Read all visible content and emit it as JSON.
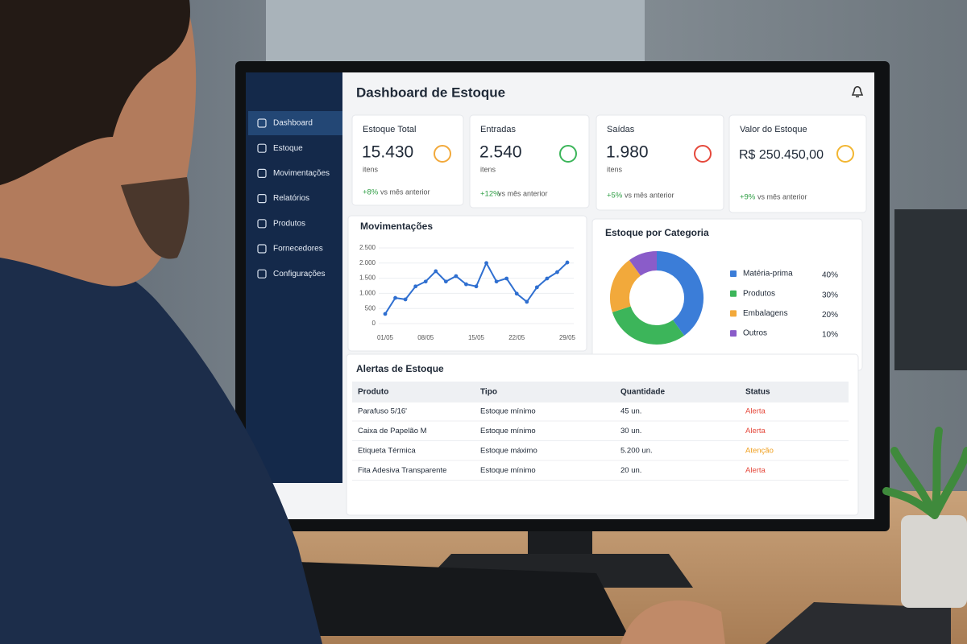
{
  "header": {
    "title": "Dashboard de Estoque"
  },
  "sidebar": {
    "items": [
      "Dashboard",
      "Estoque",
      "Movimentações",
      "Relatórios",
      "Produtos",
      "Fornecedores",
      "Configurações"
    ]
  },
  "kpis": [
    {
      "label": "Estoque Total",
      "value": "15.430",
      "unit": "itens",
      "change": "+8%",
      "comparison": "vs mês anterior"
    },
    {
      "label": "Entradas",
      "value": "2.540",
      "unit": "itens",
      "change": "+12%",
      "comparison": "vs mês anterior"
    },
    {
      "label": "Saídas",
      "value": "1.980",
      "unit": "itens",
      "change": "+5%",
      "comparison": "vs mês anterior"
    },
    {
      "label": "Valor do Estoque",
      "value": "R$ 250.450,00",
      "change": "+9%",
      "comparison": "vs mês anterior"
    }
  ],
  "chart_data": [
    {
      "type": "line",
      "title": "Movimentações",
      "categories": [
        "01/05",
        null,
        null,
        null,
        "08/05",
        null,
        null,
        null,
        null,
        "15/05",
        null,
        null,
        null,
        "22/05",
        null,
        null,
        null,
        null,
        "29/05"
      ],
      "values": [
        320,
        850,
        800,
        1230,
        1390,
        1730,
        1390,
        1570,
        1300,
        1230,
        2000,
        1390,
        1490,
        990,
        720,
        1200,
        1490,
        1700,
        2020
      ],
      "color": "#2f6fd0",
      "ylim": [
        0,
        2500
      ],
      "yticks": [
        0,
        500,
        {
          "value": 1000,
          "label": "1.000"
        },
        {
          "value": 1500,
          "label": "1.500"
        },
        {
          "value": 2000,
          "label": "2.000"
        },
        {
          "value": 2500,
          "label": "2.500"
        }
      ],
      "grid": true
    },
    {
      "type": "pie",
      "title": "Estoque por Categoria",
      "categories": [
        "Matéria-prima",
        "Produtos",
        "Embalagens",
        "Outros"
      ],
      "values": [
        40,
        30,
        20,
        10
      ],
      "value_labels": [
        "40%",
        "30%",
        "20%",
        "10%"
      ],
      "colors": [
        "#3b7dd8",
        "#3cb55a",
        "#f2a93b",
        "#8a5cc9"
      ],
      "donut": true
    }
  ],
  "alerts": {
    "title": "Alertas de Estoque",
    "columns": [
      "Produto",
      "Tipo",
      "Quantidade",
      "Status"
    ],
    "rows": [
      [
        "Parafuso 5/16'",
        "Estoque mínimo",
        "45 un.",
        "Alerta"
      ],
      [
        "Caixa de Papelão M",
        "Estoque mínimo",
        "30 un.",
        "Alerta"
      ],
      [
        "Etiqueta Térmica",
        "Estoque máximo",
        "5.200 un.",
        "Atenção"
      ],
      [
        "Fita Adesiva Transparente",
        "Estoque mínimo",
        "20 un.",
        "Alerta"
      ]
    ]
  }
}
